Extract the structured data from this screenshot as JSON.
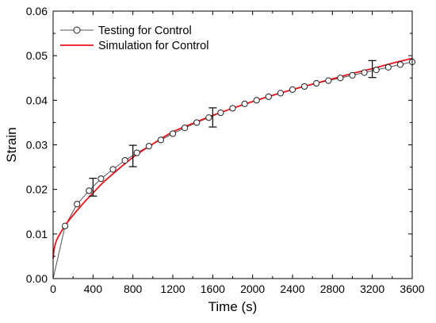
{
  "chart_data": {
    "type": "line",
    "xlabel": "Time (s)",
    "ylabel": "Strain",
    "xlim": [
      0,
      3600
    ],
    "ylim": [
      0,
      0.06
    ],
    "x_ticks": [
      0,
      400,
      800,
      1200,
      1600,
      2000,
      2400,
      2800,
      3200,
      3600
    ],
    "y_ticks": [
      0.0,
      0.01,
      0.02,
      0.03,
      0.04,
      0.05,
      0.06
    ],
    "x_tick_labels": [
      "0",
      "400",
      "800",
      "1200",
      "1600",
      "2000",
      "2400",
      "2800",
      "3200",
      "3600"
    ],
    "y_tick_labels": [
      "0.00",
      "0.01",
      "0.02",
      "0.03",
      "0.04",
      "0.05",
      "0.06"
    ],
    "grid": false,
    "legend_position": "top-left",
    "series": [
      {
        "name": "Testing for Control",
        "style": "line-with-open-circles",
        "color": "#555555",
        "x": [
          0,
          120,
          240,
          360,
          480,
          600,
          720,
          840,
          960,
          1080,
          1200,
          1320,
          1440,
          1560,
          1680,
          1800,
          1920,
          2040,
          2160,
          2280,
          2400,
          2520,
          2640,
          2760,
          2880,
          3000,
          3120,
          3240,
          3360,
          3480,
          3600
        ],
        "y": [
          0.0,
          0.0118,
          0.0167,
          0.0197,
          0.0224,
          0.0245,
          0.0265,
          0.0282,
          0.0297,
          0.0311,
          0.0325,
          0.0338,
          0.035,
          0.0361,
          0.0372,
          0.0382,
          0.0392,
          0.04,
          0.0408,
          0.0416,
          0.0424,
          0.0431,
          0.0438,
          0.0444,
          0.045,
          0.0456,
          0.0462,
          0.0468,
          0.0474,
          0.048,
          0.0486
        ]
      },
      {
        "name": "Simulation for Control",
        "style": "line",
        "color": "#e8141c",
        "x": [
          0,
          10,
          30,
          60,
          100,
          150,
          200,
          300,
          400,
          500,
          600,
          800,
          1000,
          1200,
          1400,
          1600,
          1800,
          2000,
          2200,
          2400,
          2600,
          2800,
          3000,
          3200,
          3400,
          3600
        ],
        "y": [
          0.0045,
          0.0065,
          0.0083,
          0.0097,
          0.0112,
          0.0128,
          0.0142,
          0.0168,
          0.0192,
          0.0215,
          0.0235,
          0.0272,
          0.0302,
          0.0329,
          0.0348,
          0.0366,
          0.0382,
          0.0397,
          0.0411,
          0.0424,
          0.0436,
          0.0448,
          0.046,
          0.0471,
          0.0483,
          0.0494
        ]
      }
    ],
    "error_bars": [
      {
        "x": 400,
        "y": 0.0205,
        "ymin": 0.0185,
        "ymax": 0.0225
      },
      {
        "x": 800,
        "y": 0.0275,
        "ymin": 0.0251,
        "ymax": 0.0299
      },
      {
        "x": 1600,
        "y": 0.0361,
        "ymin": 0.034,
        "ymax": 0.0383
      },
      {
        "x": 3200,
        "y": 0.047,
        "ymin": 0.0451,
        "ymax": 0.0489
      }
    ]
  }
}
